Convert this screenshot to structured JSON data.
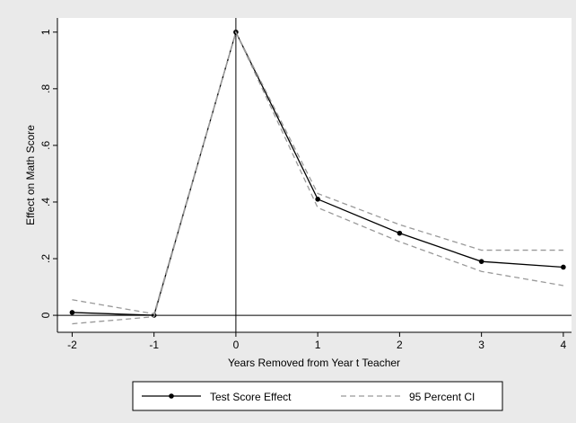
{
  "chart_data": {
    "type": "line",
    "x_label": "Years Removed from Year t Teacher",
    "y_label": "Effect on Math Score",
    "x": [
      -2,
      -1,
      0,
      1,
      2,
      3,
      4
    ],
    "series": [
      {
        "name": "Test Score Effect",
        "color": "#000000",
        "style": "solid",
        "markers": true,
        "values": [
          0.01,
          0,
          1,
          0.41,
          0.29,
          0.19,
          0.17
        ]
      },
      {
        "name": "95 Percent CI",
        "color": "#999999",
        "style": "dashed",
        "markers": false,
        "values": [
          0.055,
          0.005,
          1,
          0.43,
          0.32,
          0.23,
          0.23
        ],
        "lower": [
          -0.03,
          -0.005,
          1,
          0.38,
          0.26,
          0.155,
          0.105
        ]
      }
    ],
    "xlim": [
      -2.18,
      4.1
    ],
    "ylim": [
      -0.06,
      1.05
    ],
    "xticks": [
      -2,
      -1,
      0,
      1,
      2,
      3,
      4
    ],
    "yticks": [
      0,
      {
        "value": 0.2,
        "label": ".2"
      },
      {
        "value": 0.4,
        "label": ".4"
      },
      {
        "value": 0.6,
        "label": ".6"
      },
      {
        "value": 0.8,
        "label": ".8"
      },
      1
    ],
    "hline": 0,
    "vline": 0,
    "legend": "bottom",
    "grid": false
  }
}
